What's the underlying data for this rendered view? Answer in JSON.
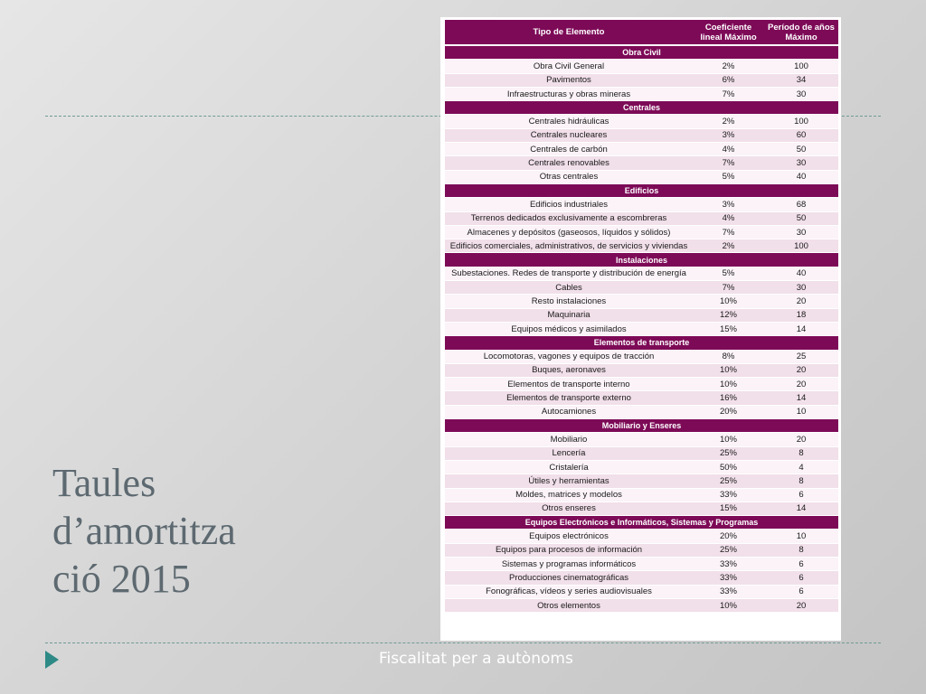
{
  "title": {
    "line1": "Taules",
    "line2": "d’amortitza",
    "line3": "ció 2015"
  },
  "footer": {
    "text": "Fiscalitat per a autònoms"
  },
  "colors": {
    "header": "#7d0a57",
    "row_light": "#fbf3f8",
    "row_dark": "#f1dfe9",
    "accent_line": "#6f9a94",
    "arrow": "#2e8a86"
  },
  "table": {
    "headers": [
      "Tipo de Elemento",
      "Coeficiente lineal Máximo",
      "Período de años Máximo"
    ],
    "sections": [
      {
        "name": "Obra Civil",
        "rows": [
          [
            "Obra Civil General",
            "2%",
            "100"
          ],
          [
            "Pavimentos",
            "6%",
            "34"
          ],
          [
            "Infraestructuras y obras mineras",
            "7%",
            "30"
          ]
        ]
      },
      {
        "name": "Centrales",
        "rows": [
          [
            "Centrales hidráulicas",
            "2%",
            "100"
          ],
          [
            "Centrales nucleares",
            "3%",
            "60"
          ],
          [
            "Centrales de carbón",
            "4%",
            "50"
          ],
          [
            "Centrales renovables",
            "7%",
            "30"
          ],
          [
            "Otras centrales",
            "5%",
            "40"
          ]
        ]
      },
      {
        "name": "Edificios",
        "rows": [
          [
            "Edificios industriales",
            "3%",
            "68"
          ],
          [
            "Terrenos dedicados exclusivamente a escombreras",
            "4%",
            "50"
          ],
          [
            "Almacenes y depósitos (gaseosos, líquidos y sólidos)",
            "7%",
            "30"
          ],
          [
            "Edificios comerciales, administrativos, de servicios y viviendas",
            "2%",
            "100"
          ]
        ]
      },
      {
        "name": "Instalaciones",
        "rows": [
          [
            "Subestaciones. Redes de transporte y distribución de energía",
            "5%",
            "40"
          ],
          [
            "Cables",
            "7%",
            "30"
          ],
          [
            "Resto instalaciones",
            "10%",
            "20"
          ],
          [
            "Maquinaria",
            "12%",
            "18"
          ],
          [
            "Equipos médicos y asimilados",
            "15%",
            "14"
          ]
        ]
      },
      {
        "name": "Elementos de transporte",
        "rows": [
          [
            "Locomotoras, vagones y equipos de tracción",
            "8%",
            "25"
          ],
          [
            "Buques, aeronaves",
            "10%",
            "20"
          ],
          [
            "Elementos de transporte interno",
            "10%",
            "20"
          ],
          [
            "Elementos de transporte externo",
            "16%",
            "14"
          ],
          [
            "Autocamiones",
            "20%",
            "10"
          ]
        ]
      },
      {
        "name": "Mobiliario y Enseres",
        "rows": [
          [
            "Mobiliario",
            "10%",
            "20"
          ],
          [
            "Lencería",
            "25%",
            "8"
          ],
          [
            "Cristalería",
            "50%",
            "4"
          ],
          [
            "Útiles y herramientas",
            "25%",
            "8"
          ],
          [
            "Moldes, matrices y modelos",
            "33%",
            "6"
          ],
          [
            "Otros enseres",
            "15%",
            "14"
          ]
        ]
      },
      {
        "name": "Equipos Electrónicos e Informáticos, Sistemas y Programas",
        "rows": [
          [
            "Equipos electrónicos",
            "20%",
            "10"
          ],
          [
            "Equipos para procesos de información",
            "25%",
            "8"
          ],
          [
            "Sistemas y programas informáticos",
            "33%",
            "6"
          ],
          [
            "Producciones cinematográficas",
            "33%",
            "6"
          ],
          [
            "Fonográficas, vídeos y series audiovisuales",
            "33%",
            "6"
          ],
          [
            "Otros elementos",
            "10%",
            "20"
          ]
        ]
      }
    ]
  }
}
